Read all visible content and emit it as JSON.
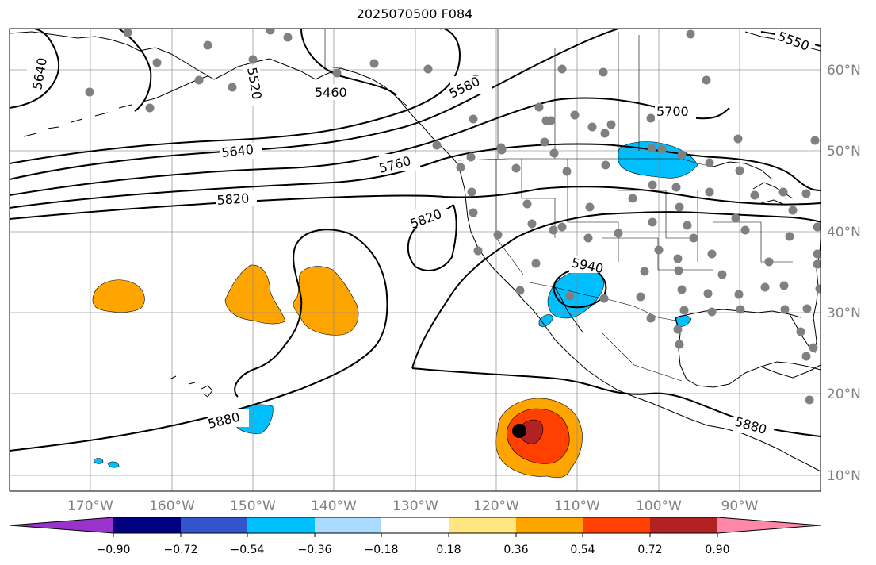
{
  "title": "2025070500 F084",
  "map": {
    "lon_range": [
      -180,
      -80
    ],
    "lat_range": [
      8,
      65
    ],
    "gridlines": true,
    "lat_ticks": [
      "60°N",
      "50°N",
      "40°N",
      "30°N",
      "20°N",
      "10°N"
    ],
    "lon_ticks": [
      "170°W",
      "160°W",
      "150°W",
      "140°W",
      "130°W",
      "120°W",
      "110°W",
      "100°W",
      "90°W"
    ],
    "contour_labels": [
      "5640",
      "5520",
      "5460",
      "5580",
      "5550",
      "5700",
      "5640",
      "5760",
      "5820",
      "5820",
      "5940",
      "5880",
      "5880"
    ],
    "storm_marker": {
      "lat": 15.3,
      "lon": -116.5,
      "color": "#000000"
    },
    "station_dot_color": "#808080",
    "coastline_color": "#000000",
    "contour_color": "#000000"
  },
  "colorbar": {
    "colors": [
      "#9933cc",
      "#000080",
      "#3355cc",
      "#00bfff",
      "#aadcff",
      "#ffffff",
      "#ffe680",
      "#ffa500",
      "#ff4000",
      "#b22222",
      "#ff88aa"
    ],
    "tick_labels": [
      "−0.90",
      "−0.72",
      "−0.54",
      "−0.36",
      "−0.18",
      "0.18",
      "0.36",
      "0.54",
      "0.72",
      "0.90"
    ]
  }
}
